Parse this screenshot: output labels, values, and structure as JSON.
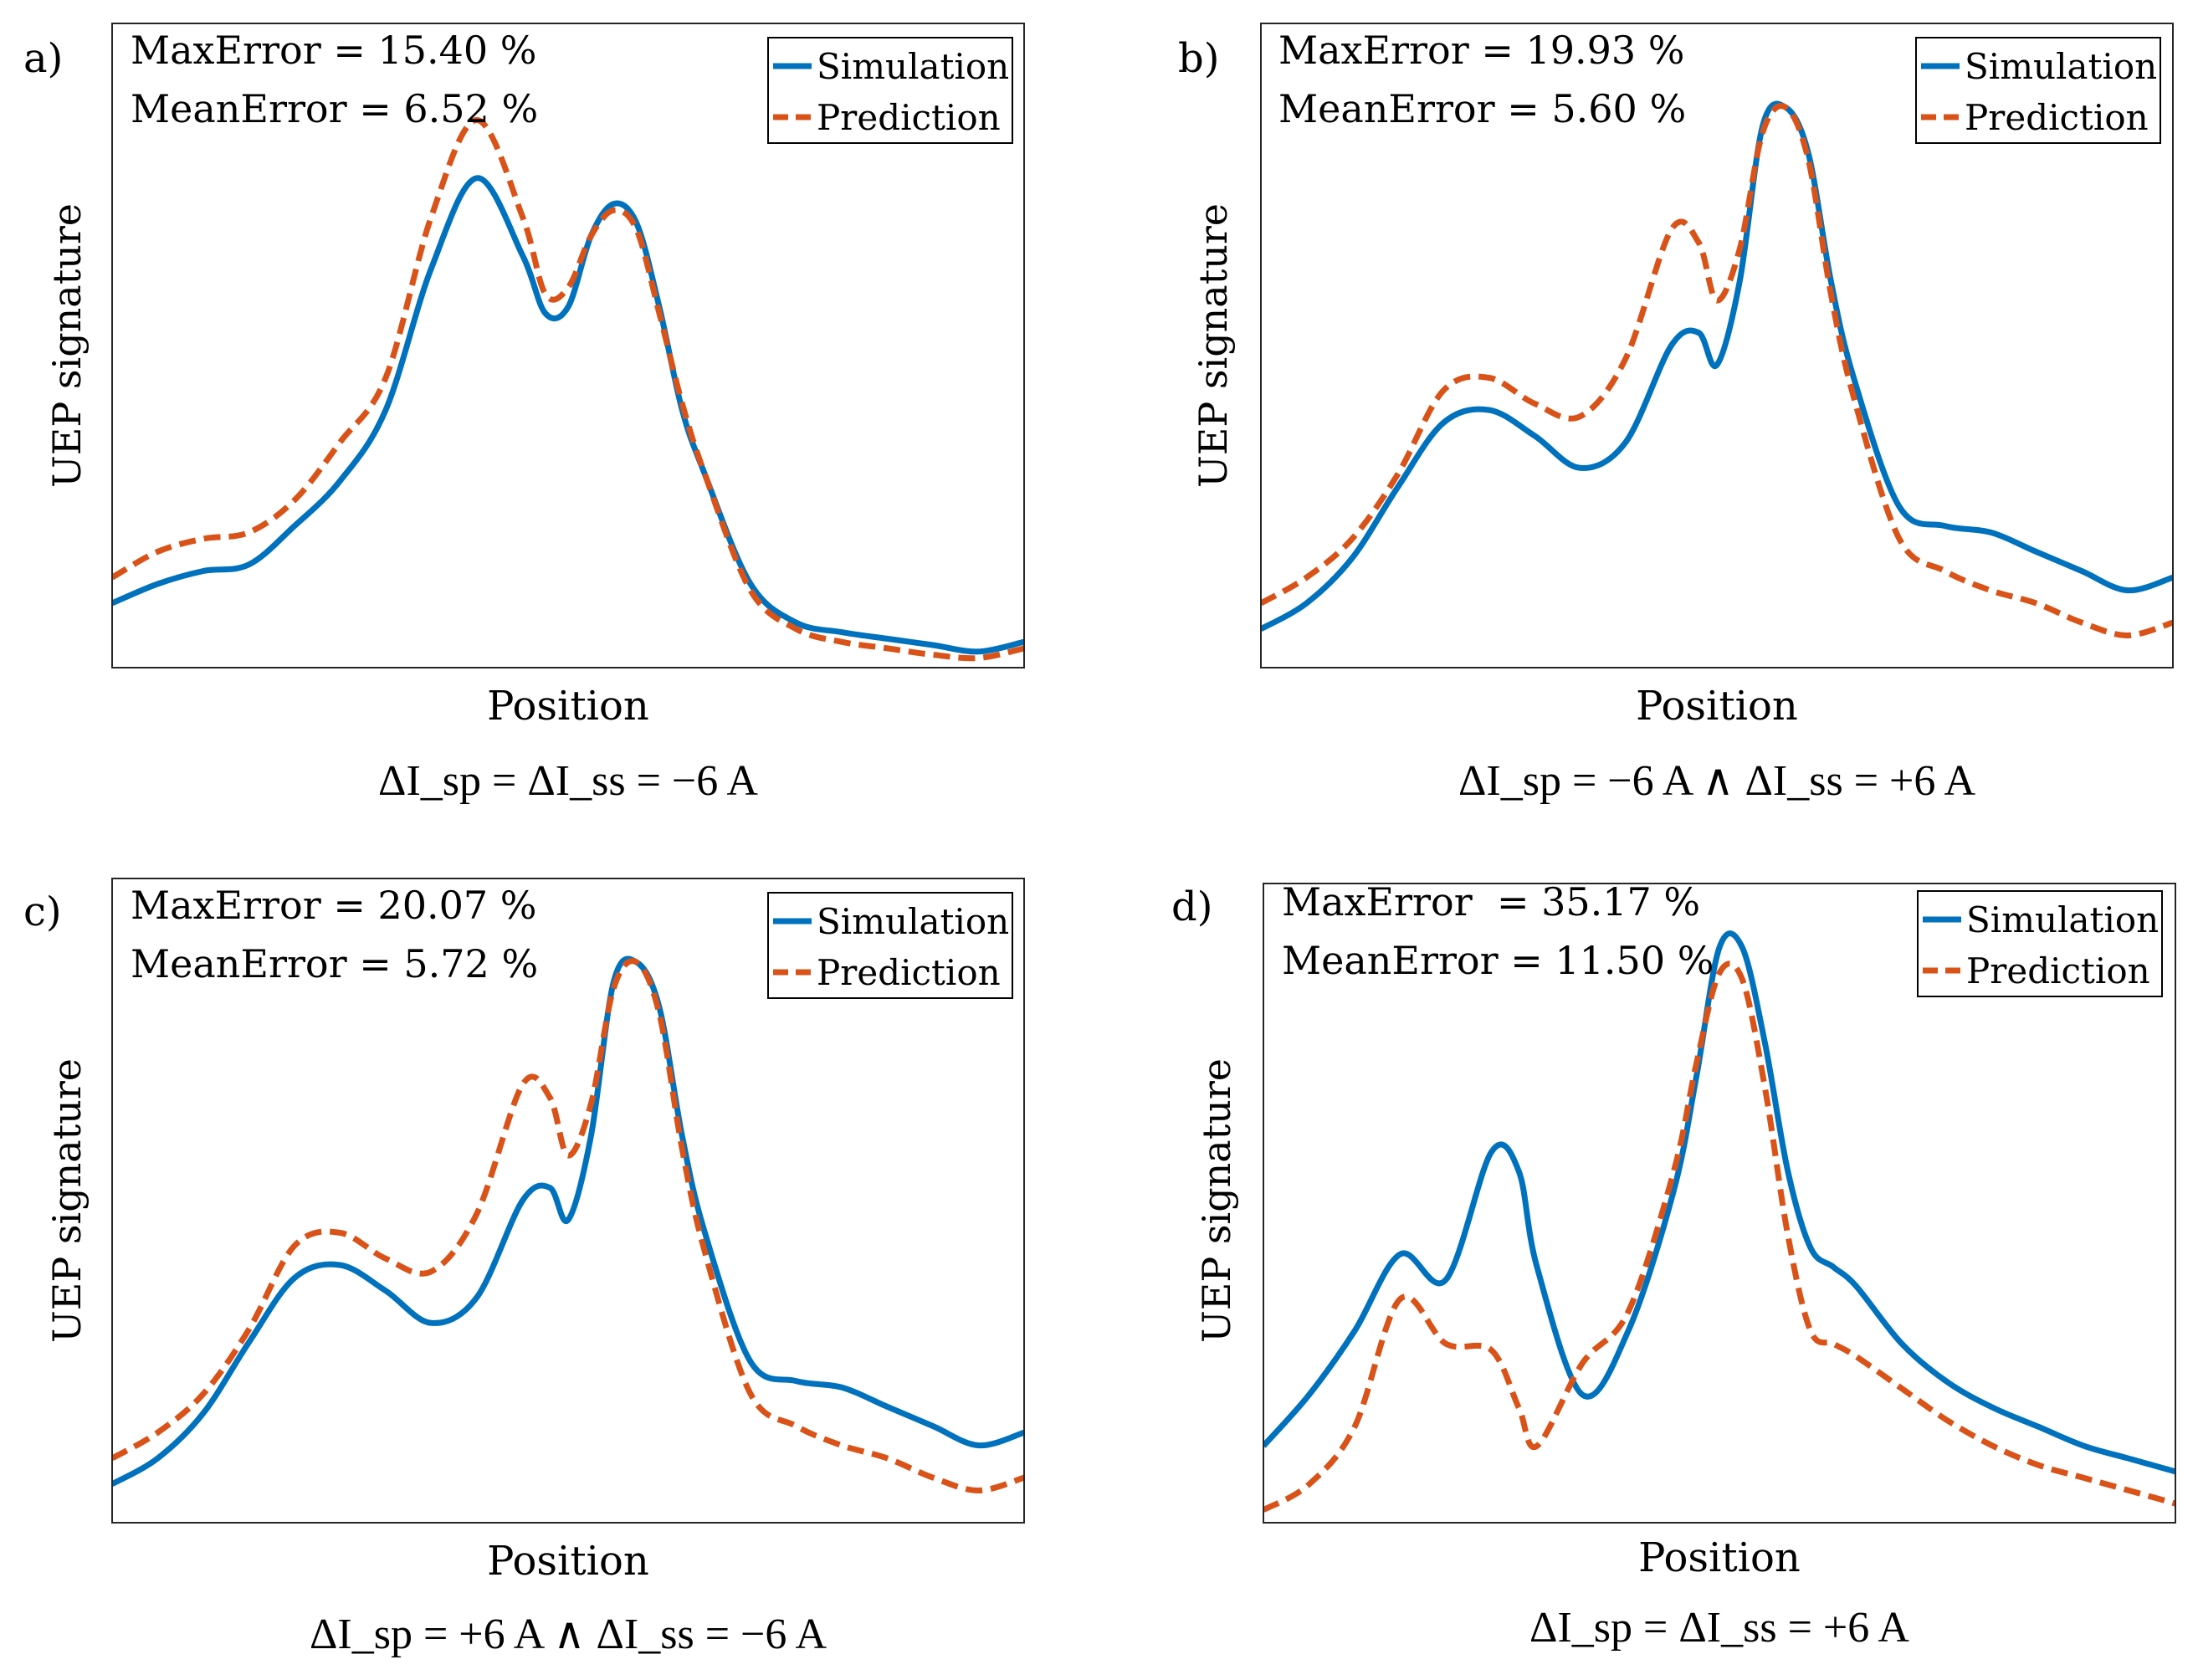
{
  "figure": {
    "panels": [
      {
        "label": "a)",
        "max_error": "MaxError = 15.40 %",
        "mean_error": "MeanError = 6.52 %",
        "ylabel": "UEP signature",
        "xlabel": "Position",
        "caption": "ΔI_sp = ΔI_ss = −6 A",
        "legend": [
          "Simulation",
          "Prediction"
        ]
      },
      {
        "label": "b)",
        "max_error": "MaxError = 19.93 %",
        "mean_error": "MeanError = 5.60 %",
        "ylabel": "UEP signature",
        "xlabel": "Position",
        "caption": "ΔI_sp = −6 A ∧ ΔI_ss = +6 A",
        "legend": [
          "Simulation",
          "Prediction"
        ]
      },
      {
        "label": "c)",
        "max_error": "MaxError = 20.07 %",
        "mean_error": "MeanError = 5.72 %",
        "ylabel": "UEP signature",
        "xlabel": "Position",
        "caption": "ΔI_sp = +6 A ∧ ΔI_ss = −6 A",
        "legend": [
          "Simulation",
          "Prediction"
        ]
      },
      {
        "label": "d)",
        "max_error": "MaxError  = 35.17 %",
        "mean_error": "MeanError = 11.50 %",
        "ylabel": "UEP signature",
        "xlabel": "Position",
        "caption": "ΔI_sp = ΔI_ss = +6 A",
        "legend": [
          "Simulation",
          "Prediction"
        ]
      }
    ]
  },
  "colors": {
    "simulation": "#0072BD",
    "prediction": "#D95319"
  },
  "chart_data": [
    {
      "type": "line",
      "title": "a)",
      "xlabel": "Position",
      "ylabel": "UEP signature",
      "xlim": [
        0,
        1
      ],
      "ylim": [
        0,
        1
      ],
      "x": [
        0,
        0.05,
        0.1,
        0.15,
        0.2,
        0.25,
        0.3,
        0.35,
        0.4,
        0.45,
        0.475,
        0.5,
        0.525,
        0.55,
        0.575,
        0.6,
        0.625,
        0.65,
        0.7,
        0.75,
        0.8,
        0.85,
        0.9,
        0.95,
        1.0
      ],
      "series": [
        {
          "name": "Simulation",
          "values": [
            0.1,
            0.13,
            0.15,
            0.16,
            0.22,
            0.29,
            0.4,
            0.62,
            0.76,
            0.64,
            0.55,
            0.56,
            0.67,
            0.72,
            0.69,
            0.56,
            0.4,
            0.3,
            0.13,
            0.07,
            0.055,
            0.045,
            0.035,
            0.025,
            0.04
          ]
        },
        {
          "name": "Prediction",
          "values": [
            0.14,
            0.18,
            0.2,
            0.21,
            0.26,
            0.35,
            0.45,
            0.7,
            0.85,
            0.7,
            0.58,
            0.59,
            0.67,
            0.71,
            0.68,
            0.55,
            0.41,
            0.3,
            0.12,
            0.06,
            0.04,
            0.03,
            0.02,
            0.015,
            0.03
          ]
        }
      ]
    },
    {
      "type": "line",
      "title": "b)",
      "xlabel": "Position",
      "ylabel": "UEP signature",
      "xlim": [
        0,
        1
      ],
      "ylim": [
        0,
        1
      ],
      "x": [
        0,
        0.05,
        0.1,
        0.15,
        0.2,
        0.25,
        0.3,
        0.35,
        0.4,
        0.45,
        0.48,
        0.5,
        0.525,
        0.55,
        0.575,
        0.6,
        0.625,
        0.65,
        0.7,
        0.75,
        0.8,
        0.85,
        0.9,
        0.95,
        1.0
      ],
      "series": [
        {
          "name": "Simulation",
          "values": [
            0.06,
            0.1,
            0.17,
            0.28,
            0.38,
            0.4,
            0.36,
            0.31,
            0.35,
            0.5,
            0.52,
            0.47,
            0.6,
            0.84,
            0.87,
            0.8,
            0.6,
            0.45,
            0.25,
            0.22,
            0.21,
            0.18,
            0.15,
            0.12,
            0.14
          ]
        },
        {
          "name": "Prediction",
          "values": [
            0.1,
            0.14,
            0.2,
            0.3,
            0.43,
            0.45,
            0.41,
            0.39,
            0.48,
            0.68,
            0.66,
            0.57,
            0.65,
            0.83,
            0.87,
            0.79,
            0.58,
            0.42,
            0.2,
            0.15,
            0.12,
            0.1,
            0.07,
            0.05,
            0.07
          ]
        }
      ]
    },
    {
      "type": "line",
      "title": "c)",
      "xlabel": "Position",
      "ylabel": "UEP signature",
      "xlim": [
        0,
        1
      ],
      "ylim": [
        0,
        1
      ],
      "x": [
        0,
        0.05,
        0.1,
        0.15,
        0.2,
        0.25,
        0.3,
        0.35,
        0.4,
        0.45,
        0.48,
        0.5,
        0.525,
        0.55,
        0.575,
        0.6,
        0.625,
        0.65,
        0.7,
        0.75,
        0.8,
        0.85,
        0.9,
        0.95,
        1.0
      ],
      "series": [
        {
          "name": "Simulation",
          "values": [
            0.06,
            0.1,
            0.17,
            0.28,
            0.38,
            0.4,
            0.36,
            0.31,
            0.35,
            0.5,
            0.52,
            0.47,
            0.6,
            0.84,
            0.87,
            0.8,
            0.6,
            0.45,
            0.25,
            0.22,
            0.21,
            0.18,
            0.15,
            0.12,
            0.14
          ]
        },
        {
          "name": "Prediction",
          "values": [
            0.1,
            0.14,
            0.2,
            0.3,
            0.43,
            0.45,
            0.41,
            0.39,
            0.48,
            0.68,
            0.66,
            0.57,
            0.65,
            0.83,
            0.87,
            0.79,
            0.58,
            0.42,
            0.2,
            0.15,
            0.12,
            0.1,
            0.07,
            0.05,
            0.07
          ]
        }
      ]
    },
    {
      "type": "line",
      "title": "d)",
      "xlabel": "Position",
      "ylabel": "UEP signature",
      "xlim": [
        0,
        1
      ],
      "ylim": [
        0,
        1
      ],
      "x": [
        0,
        0.05,
        0.1,
        0.15,
        0.2,
        0.25,
        0.28,
        0.3,
        0.35,
        0.4,
        0.45,
        0.475,
        0.5,
        0.525,
        0.55,
        0.575,
        0.6,
        0.625,
        0.65,
        0.7,
        0.75,
        0.8,
        0.85,
        0.9,
        0.95,
        1.0
      ],
      "series": [
        {
          "name": "Simulation",
          "values": [
            0.12,
            0.2,
            0.3,
            0.42,
            0.38,
            0.58,
            0.55,
            0.4,
            0.2,
            0.3,
            0.52,
            0.7,
            0.9,
            0.9,
            0.75,
            0.55,
            0.43,
            0.4,
            0.37,
            0.28,
            0.22,
            0.18,
            0.15,
            0.12,
            0.1,
            0.08
          ]
        },
        {
          "name": "Prediction",
          "values": [
            0.02,
            0.06,
            0.15,
            0.35,
            0.28,
            0.27,
            0.18,
            0.12,
            0.25,
            0.33,
            0.55,
            0.72,
            0.86,
            0.85,
            0.68,
            0.45,
            0.3,
            0.28,
            0.26,
            0.21,
            0.16,
            0.12,
            0.09,
            0.07,
            0.05,
            0.03
          ]
        }
      ]
    }
  ]
}
